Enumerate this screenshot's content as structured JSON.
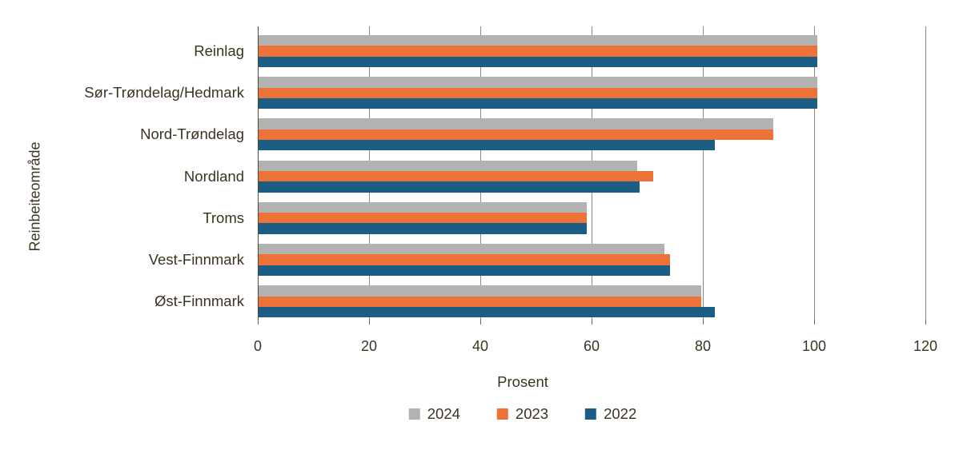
{
  "chart_data": {
    "type": "bar",
    "orientation": "horizontal",
    "title": "",
    "ylabel": "Reinbeiteområde",
    "xlabel": "Prosent",
    "categories": [
      "Reinlag",
      "Sør-Trøndelag/Hedmark",
      "Nord-Trøndelag",
      "Nordland",
      "Troms",
      "Vest-Finnmark",
      "Øst-Finnmark"
    ],
    "series": [
      {
        "name": "2024",
        "color": "#B2B2B1",
        "values": [
          100.5,
          100.5,
          92.5,
          68,
          59,
          73,
          79.5
        ]
      },
      {
        "name": "2023",
        "color": "#ED7237",
        "values": [
          100.5,
          100.5,
          92.5,
          71,
          59,
          74,
          79.5
        ]
      },
      {
        "name": "2022",
        "color": "#1C5D86",
        "values": [
          100.5,
          100.5,
          82,
          68.5,
          59,
          74,
          82
        ]
      }
    ],
    "xlim": [
      0,
      120
    ],
    "xticks": [
      0,
      20,
      40,
      60,
      80,
      100,
      120
    ],
    "grid": true,
    "legend_position": "bottom",
    "text_color": "#3B3422",
    "gridline_color": "#8C897B"
  }
}
